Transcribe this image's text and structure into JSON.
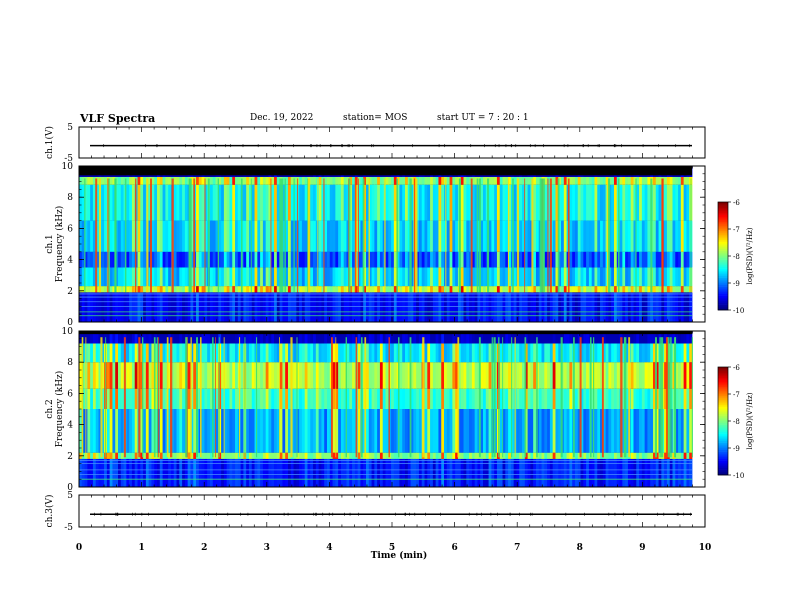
{
  "header": {
    "title": "VLF Spectra",
    "date": "Dec. 19, 2022",
    "station": "station= MOS",
    "start_ut": "start  UT  =   7 : 20 : 1"
  },
  "chart_data": [
    {
      "type": "line",
      "name": "ch1-waveform",
      "ylabel": "ch.1(V)",
      "ylim": [
        -5,
        5
      ],
      "yticks": [
        "5",
        "-5"
      ],
      "xlim": [
        0,
        10
      ],
      "series": [
        {
          "values": [
            -1,
            -1
          ]
        }
      ]
    },
    {
      "type": "heatmap",
      "name": "ch1-spectrogram",
      "ylabel_line1": "ch.1",
      "ylabel_line2": "Frequency (kHz)",
      "ylim": [
        0,
        10
      ],
      "yticks": [
        "0",
        "2",
        "4",
        "6",
        "8",
        "10"
      ],
      "xlim": [
        0,
        9.85
      ],
      "colorbar": {
        "label": "log(PSD)(V²/Hz)",
        "range": [
          -10,
          -6
        ],
        "ticks": [
          "-6",
          "-7",
          "-8",
          "-9",
          "-10"
        ]
      }
    },
    {
      "type": "heatmap",
      "name": "ch2-spectrogram",
      "ylabel_line1": "ch.2",
      "ylabel_line2": "Frequency (kHz)",
      "ylim": [
        0,
        10
      ],
      "yticks": [
        "0",
        "2",
        "4",
        "6",
        "8",
        "10"
      ],
      "xlim": [
        0,
        9.85
      ],
      "colorbar": {
        "label": "log(PSD)(V²/Hz)",
        "range": [
          -10,
          -6
        ],
        "ticks": [
          "-6",
          "-7",
          "-8",
          "-9",
          "-10"
        ]
      }
    },
    {
      "type": "line",
      "name": "ch3-waveform",
      "ylabel": "ch.3(V)",
      "ylim": [
        -5,
        5
      ],
      "yticks": [
        "5",
        "-5"
      ],
      "xlim": [
        0,
        10
      ],
      "series": [
        {
          "values": [
            -1,
            -1
          ]
        }
      ]
    }
  ],
  "xaxis": {
    "label": "Time  (min)",
    "ticks": [
      "0",
      "1",
      "2",
      "3",
      "4",
      "5",
      "6",
      "7",
      "8",
      "9",
      "10"
    ]
  }
}
